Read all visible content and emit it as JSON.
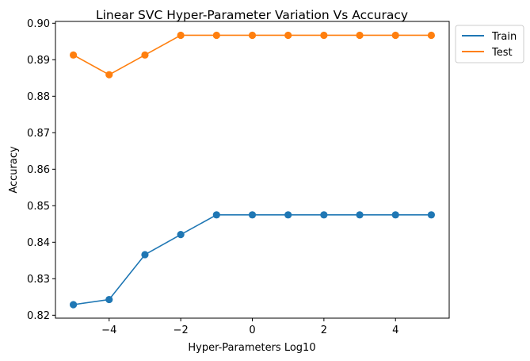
{
  "chart_data": {
    "type": "line",
    "title": "Linear SVC Hyper-Parameter Variation Vs Accuracy",
    "xlabel": "Hyper-Parameters Log10",
    "ylabel": "Accuracy",
    "x": [
      -5,
      -4,
      -3,
      -2,
      -1,
      0,
      1,
      2,
      3,
      4,
      5
    ],
    "xlim": [
      -5.5,
      5.5
    ],
    "ylim": [
      0.8192,
      0.9005
    ],
    "xticks": [
      -4,
      -2,
      0,
      2,
      4
    ],
    "xtick_labels": [
      "−4",
      "−2",
      "0",
      "2",
      "4"
    ],
    "yticks": [
      0.82,
      0.83,
      0.84,
      0.85,
      0.86,
      0.87,
      0.88,
      0.89,
      0.9
    ],
    "ytick_labels": [
      "0.82",
      "0.83",
      "0.84",
      "0.85",
      "0.86",
      "0.87",
      "0.88",
      "0.89",
      "0.90"
    ],
    "grid": false,
    "legend_position": "outside-top-right",
    "series": [
      {
        "name": "Train",
        "color": "#1f77b4",
        "values": [
          0.8229,
          0.8243,
          0.8366,
          0.8421,
          0.8475,
          0.8475,
          0.8475,
          0.8475,
          0.8475,
          0.8475,
          0.8475
        ]
      },
      {
        "name": "Test",
        "color": "#ff7f0e",
        "values": [
          0.8913,
          0.8859,
          0.8913,
          0.8967,
          0.8967,
          0.8967,
          0.8967,
          0.8967,
          0.8967,
          0.8967,
          0.8967
        ]
      }
    ]
  }
}
